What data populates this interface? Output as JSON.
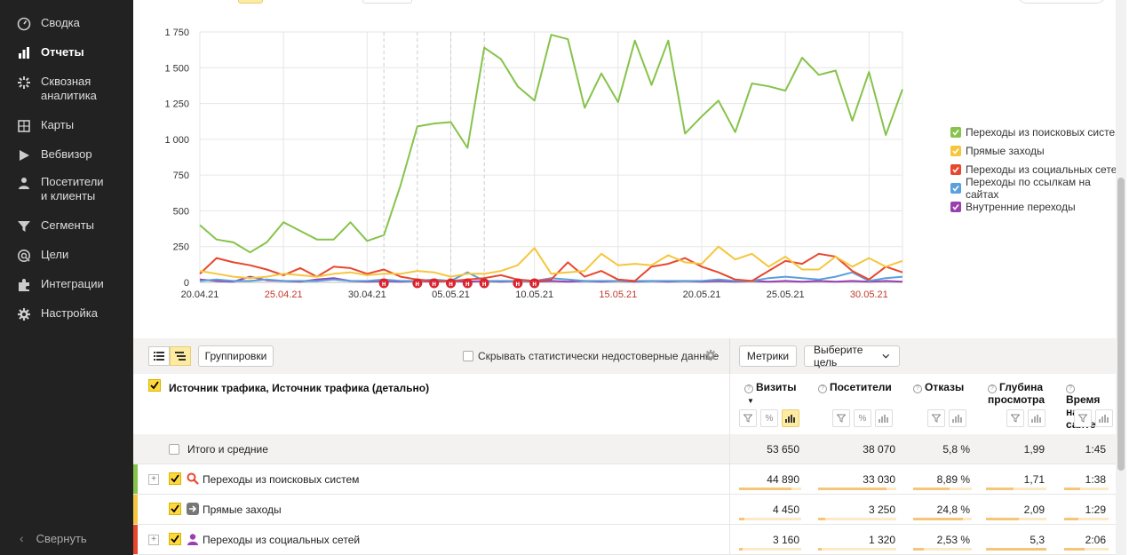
{
  "sidebar": {
    "items": [
      {
        "label": "Сводка",
        "icon": "dashboard-icon"
      },
      {
        "label": "Отчеты",
        "icon": "bar-chart-icon"
      },
      {
        "label": "Сквозная аналитика",
        "icon": "cross-analytics-icon"
      },
      {
        "label": "Карты",
        "icon": "map-icon"
      },
      {
        "label": "Вебвизор",
        "icon": "play-icon"
      },
      {
        "label": "Посетители и клиенты",
        "icon": "person-icon"
      },
      {
        "label": "Сегменты",
        "icon": "funnel-icon"
      },
      {
        "label": "Цели",
        "icon": "target-icon"
      },
      {
        "label": "Интеграции",
        "icon": "puzzle-icon"
      },
      {
        "label": "Настройка",
        "icon": "gear-icon"
      }
    ],
    "collapse_label": "Свернуть"
  },
  "chart_data": {
    "type": "line",
    "y_ticks": [
      "0",
      "250",
      "500",
      "750",
      "1 000",
      "1 250",
      "1 500",
      "1 750"
    ],
    "ylim": [
      0,
      1750
    ],
    "x_tick_labels": [
      "20.04.21",
      "25.04.21",
      "30.04.21",
      "05.05.21",
      "10.05.21",
      "15.05.21",
      "20.05.21",
      "25.05.21",
      "30.05.21"
    ],
    "x_tick_weekend": [
      false,
      true,
      false,
      false,
      false,
      true,
      false,
      false,
      true
    ],
    "holiday_marker_label": "н",
    "holiday_marker_days": [
      11,
      13,
      14,
      15,
      16,
      17,
      19,
      20
    ],
    "holiday_dashed_days": [
      11,
      13,
      15,
      17
    ],
    "num_days": 43,
    "series": [
      {
        "name": "Переходы из поисковых систем",
        "color": "#86c34a",
        "values": [
          400,
          300,
          280,
          210,
          280,
          420,
          360,
          300,
          300,
          420,
          290,
          330,
          680,
          1090,
          1110,
          1120,
          940,
          1640,
          1560,
          1370,
          1270,
          1730,
          1700,
          1220,
          1460,
          1260,
          1690,
          1380,
          1690,
          1040,
          1160,
          1270,
          1050,
          1390,
          1370,
          1340,
          1570,
          1450,
          1480,
          1130,
          1470,
          1030,
          1350
        ]
      },
      {
        "name": "Прямые заходы",
        "color": "#f5c63d",
        "values": [
          80,
          60,
          40,
          30,
          40,
          60,
          50,
          40,
          60,
          70,
          50,
          60,
          60,
          80,
          70,
          40,
          60,
          60,
          80,
          120,
          240,
          60,
          70,
          80,
          200,
          120,
          130,
          120,
          190,
          140,
          130,
          250,
          160,
          200,
          110,
          180,
          90,
          90,
          180,
          110,
          170,
          110,
          150
        ]
      },
      {
        "name": "Переходы из социальных сетей",
        "color": "#e8472e",
        "values": [
          60,
          170,
          140,
          120,
          90,
          50,
          100,
          40,
          110,
          100,
          60,
          90,
          40,
          20,
          10,
          10,
          20,
          30,
          50,
          20,
          10,
          20,
          140,
          40,
          80,
          20,
          10,
          110,
          130,
          170,
          110,
          70,
          20,
          10,
          80,
          150,
          130,
          200,
          180,
          80,
          20,
          110,
          70
        ]
      },
      {
        "name": "Переходы по ссылкам на сайтах",
        "color": "#5aa0dc",
        "values": [
          10,
          20,
          10,
          10,
          20,
          10,
          10,
          10,
          20,
          10,
          10,
          20,
          10,
          10,
          20,
          10,
          70,
          10,
          10,
          10,
          10,
          30,
          20,
          10,
          10,
          10,
          10,
          10,
          10,
          10,
          10,
          20,
          10,
          10,
          30,
          40,
          30,
          20,
          40,
          70,
          10,
          30,
          40
        ]
      },
      {
        "name": "Внутренние переходы",
        "color": "#9a3fb0",
        "values": [
          20,
          10,
          5,
          40,
          15,
          10,
          5,
          20,
          30,
          10,
          5,
          10,
          5,
          10,
          5,
          10,
          5,
          10,
          5,
          10,
          5,
          10,
          5,
          10,
          5,
          10,
          5,
          10,
          5,
          10,
          5,
          10,
          5,
          10,
          5,
          10,
          5,
          10,
          5,
          10,
          5,
          10,
          5
        ]
      }
    ],
    "legend_position": "right",
    "grid": true
  },
  "toolbar": {
    "groupings_label": "Группировки",
    "hide_stat_label": "Скрывать статистически недостоверные данные",
    "metrics_label": "Метрики",
    "goal_label": "Выберите цель"
  },
  "table": {
    "dimension_title": "Источник трафика, Источник трафика (детально)",
    "columns": [
      {
        "title": "Визиты",
        "sort": "▼"
      },
      {
        "title": "Посетители"
      },
      {
        "title": "Отказы"
      },
      {
        "title": "Глубина просмотра"
      },
      {
        "title": "Время на сайте"
      }
    ],
    "total": {
      "label": "Итого и средние",
      "values": [
        "53 650",
        "38 070",
        "5,8 %",
        "1,99",
        "1:45"
      ]
    },
    "rows": [
      {
        "label": "Переходы из поисковых систем",
        "accent": "#86c34a",
        "icon": "search-icon",
        "expandable": true,
        "values": [
          "44 890",
          "33 030",
          "8,89 %",
          "1,71",
          "1:38"
        ],
        "shares": [
          0.84,
          0.87,
          0.62,
          0.45,
          0.35
        ]
      },
      {
        "label": "Прямые заходы",
        "accent": "#f5c63d",
        "icon": "direct-arrow-icon",
        "expandable": false,
        "values": [
          "4 450",
          "3 250",
          "24,8 %",
          "2,09",
          "1:29"
        ],
        "shares": [
          0.08,
          0.09,
          0.85,
          0.55,
          0.32
        ]
      },
      {
        "label": "Переходы из социальных сетей",
        "accent": "#e8472e",
        "icon": "social-person-icon",
        "expandable": true,
        "values": [
          "3 160",
          "1 320",
          "2,53 %",
          "5,3",
          "2:06"
        ],
        "shares": [
          0.06,
          0.04,
          0.18,
          1.0,
          0.45
        ]
      }
    ]
  }
}
